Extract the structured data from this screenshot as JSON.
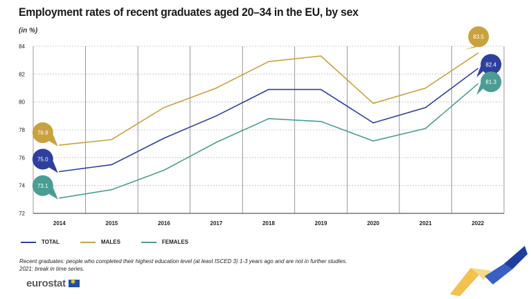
{
  "header": {
    "title": "Employment rates of recent graduates aged 20–34 in the EU, by sex",
    "unit": "(in %)"
  },
  "chart_data": {
    "type": "line",
    "title": "Employment rates of recent graduates aged 20–34 in the EU, by sex",
    "ylabel": "(in %)",
    "xlabel": "",
    "ylim": [
      72,
      84
    ],
    "yticks": [
      72,
      74,
      76,
      78,
      80,
      82,
      84
    ],
    "grid": true,
    "legend_position": "bottom-left",
    "categories": [
      "2014",
      "2015",
      "2016",
      "2017",
      "2018",
      "2019",
      "2020",
      "2021",
      "2022"
    ],
    "series": [
      {
        "name": "TOTAL",
        "color": "#2e3f9e",
        "values": [
          75.0,
          75.5,
          77.4,
          79.0,
          80.9,
          80.9,
          78.5,
          79.6,
          82.4
        ]
      },
      {
        "name": "MALES",
        "color": "#c9a23f",
        "values": [
          76.9,
          77.3,
          79.6,
          81.0,
          82.9,
          83.3,
          79.9,
          81.0,
          83.5
        ]
      },
      {
        "name": "FEMALES",
        "color": "#4a9d92",
        "values": [
          73.1,
          73.7,
          75.1,
          77.1,
          78.8,
          78.6,
          77.2,
          78.1,
          81.3
        ]
      }
    ],
    "annotations": [
      {
        "series": 1,
        "index": 0,
        "text": "76.9"
      },
      {
        "series": 0,
        "index": 0,
        "text": "75.0"
      },
      {
        "series": 2,
        "index": 0,
        "text": "73.1"
      },
      {
        "series": 1,
        "index": 8,
        "text": "83.5"
      },
      {
        "series": 0,
        "index": 8,
        "text": "82.4"
      },
      {
        "series": 2,
        "index": 8,
        "text": "81.3"
      }
    ]
  },
  "legend": {
    "items": [
      {
        "label": "TOTAL",
        "color": "#2e3f9e"
      },
      {
        "label": "MALES",
        "color": "#c9a23f"
      },
      {
        "label": "FEMALES",
        "color": "#4a9d92"
      }
    ]
  },
  "footnote": {
    "line1": "Recent graduates: people who completed their highest education level (at least ISCED 3) 1-3 years ago and are not in further studies.",
    "line2": "2021: break in time series."
  },
  "brand": {
    "name": "eurostat",
    "flag_icon": "eu-flag-icon"
  }
}
